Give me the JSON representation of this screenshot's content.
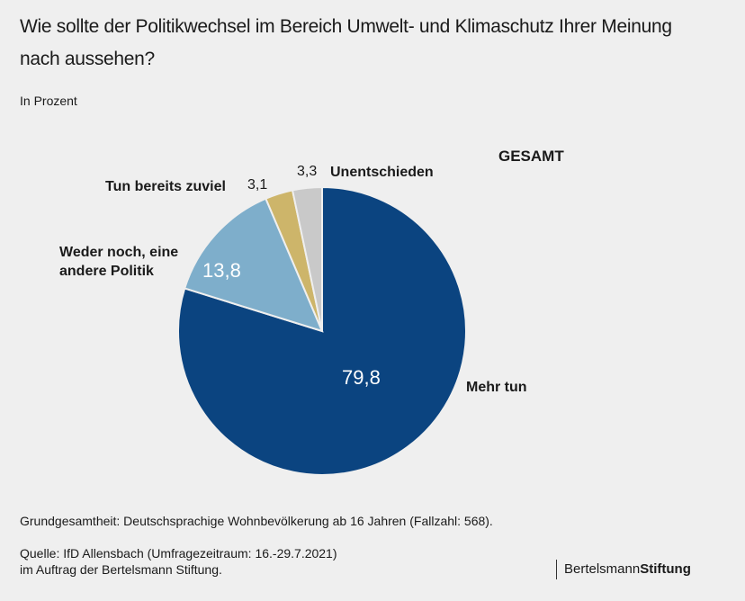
{
  "title": "Wie sollte der Politikwechsel im Bereich Umwelt- und Klimaschutz Ihrer Meinung nach aussehen?",
  "subtitle": "In Prozent",
  "group_label": "GESAMT",
  "chart_data": {
    "type": "pie",
    "title": "Wie sollte der Politikwechsel im Bereich Umwelt- und Klimaschutz Ihrer Meinung nach aussehen?",
    "subtitle": "In Prozent",
    "group": "GESAMT",
    "start": "12 o'clock, clockwise",
    "slices": [
      {
        "label": "Mehr tun",
        "value": 79.8,
        "display": "79,8",
        "color": "#0b4480"
      },
      {
        "label": "Weder noch, eine andere Politik",
        "value": 13.8,
        "display": "13,8",
        "color": "#7eaecb"
      },
      {
        "label": "Tun bereits zuviel",
        "value": 3.1,
        "display": "3,1",
        "color": "#cdb56a"
      },
      {
        "label": "Unentschieden",
        "value": 3.3,
        "display": "3,3",
        "color": "#c9c9c9"
      }
    ]
  },
  "labels": {
    "mehr_tun": "Mehr tun",
    "weder_line1": "Weder noch, eine",
    "weder_line2": "andere Politik",
    "zuviel": "Tun bereits zuviel",
    "unentschieden": "Unentschieden"
  },
  "footer": {
    "population": "Grundgesamtheit: Deutschsprachige Wohnbevölkerung ab 16 Jahren (Fallzahl: 568).",
    "source_line1": "Quelle: IfD Allensbach (Umfragezeitraum: 16.-29.7.2021)",
    "source_line2": "im Auftrag der Bertelsmann Stiftung.",
    "brand_light": "Bertelsmann",
    "brand_bold": "Stiftung"
  }
}
